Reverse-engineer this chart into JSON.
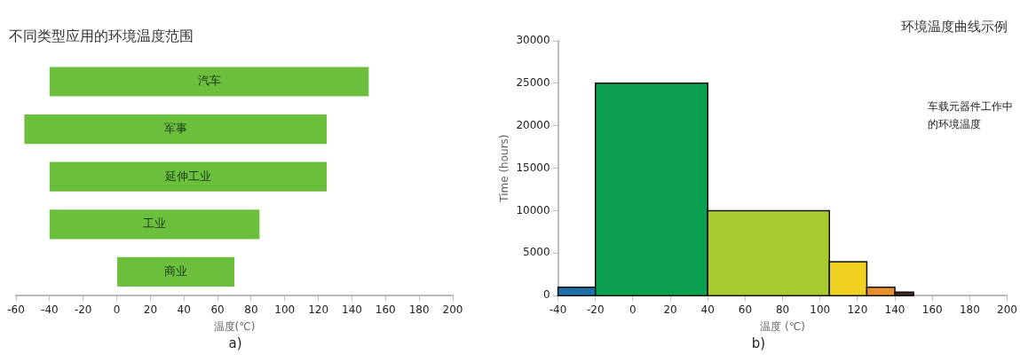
{
  "chart_data": [
    {
      "type": "bar",
      "orientation": "horizontal",
      "title": "不同类型应用的环境温度范围",
      "xlabel": "温度(℃)",
      "categories": [
        "汽车",
        "军事",
        "延伸工业",
        "工业",
        "商业"
      ],
      "base": [
        -40,
        -55,
        -40,
        -40,
        0
      ],
      "values": [
        190,
        180,
        165,
        125,
        70
      ],
      "color": "#6cbf3c",
      "xlim": [
        -60,
        200
      ],
      "xticks": [
        -60,
        -40,
        -20,
        0,
        20,
        40,
        60,
        80,
        100,
        120,
        140,
        160,
        180,
        200
      ],
      "tick_labels": "x",
      "grid": false,
      "annotations": [
        "a)"
      ]
    },
    {
      "type": "histogram",
      "title": "环境温度曲线示例",
      "xlabel": "温度 (℃)",
      "ylabel": "Time (hours)",
      "bins": [
        -40,
        -20,
        40,
        105,
        125,
        140,
        150
      ],
      "values": [
        1000,
        25000,
        10000,
        4000,
        1000,
        400
      ],
      "colors": [
        "#1f6fa8",
        "#0aa050",
        "#a8cc30",
        "#f0d020",
        "#e89030",
        "#402820"
      ],
      "xlim": [
        -40,
        200
      ],
      "xticks": [
        -40,
        -20,
        0,
        20,
        40,
        60,
        80,
        100,
        120,
        140,
        160,
        180,
        200
      ],
      "ylim": [
        0,
        30000
      ],
      "yticks": [
        0,
        5000,
        10000,
        15000,
        20000,
        25000,
        30000
      ],
      "grid": false,
      "annotations": [
        "车载元器件工作中的环境温度",
        "b)"
      ]
    }
  ]
}
